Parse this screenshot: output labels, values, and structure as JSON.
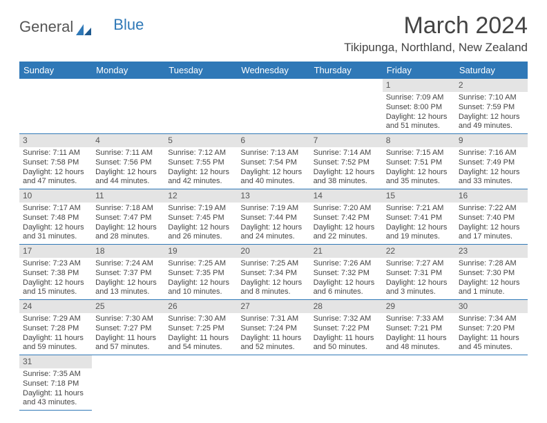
{
  "brand": {
    "part1": "General",
    "part2": "Blue"
  },
  "title": "March 2024",
  "location": "Tikipunga, Northland, New Zealand",
  "colors": {
    "header_bg": "#2f78b7",
    "daynum_bg": "#e4e4e4",
    "text": "#444444"
  },
  "weekdays": [
    "Sunday",
    "Monday",
    "Tuesday",
    "Wednesday",
    "Thursday",
    "Friday",
    "Saturday"
  ],
  "weeks": [
    [
      null,
      null,
      null,
      null,
      null,
      {
        "d": "1",
        "sr": "7:09 AM",
        "ss": "8:00 PM",
        "dl": "12 hours and 51 minutes."
      },
      {
        "d": "2",
        "sr": "7:10 AM",
        "ss": "7:59 PM",
        "dl": "12 hours and 49 minutes."
      }
    ],
    [
      {
        "d": "3",
        "sr": "7:11 AM",
        "ss": "7:58 PM",
        "dl": "12 hours and 47 minutes."
      },
      {
        "d": "4",
        "sr": "7:11 AM",
        "ss": "7:56 PM",
        "dl": "12 hours and 44 minutes."
      },
      {
        "d": "5",
        "sr": "7:12 AM",
        "ss": "7:55 PM",
        "dl": "12 hours and 42 minutes."
      },
      {
        "d": "6",
        "sr": "7:13 AM",
        "ss": "7:54 PM",
        "dl": "12 hours and 40 minutes."
      },
      {
        "d": "7",
        "sr": "7:14 AM",
        "ss": "7:52 PM",
        "dl": "12 hours and 38 minutes."
      },
      {
        "d": "8",
        "sr": "7:15 AM",
        "ss": "7:51 PM",
        "dl": "12 hours and 35 minutes."
      },
      {
        "d": "9",
        "sr": "7:16 AM",
        "ss": "7:49 PM",
        "dl": "12 hours and 33 minutes."
      }
    ],
    [
      {
        "d": "10",
        "sr": "7:17 AM",
        "ss": "7:48 PM",
        "dl": "12 hours and 31 minutes."
      },
      {
        "d": "11",
        "sr": "7:18 AM",
        "ss": "7:47 PM",
        "dl": "12 hours and 28 minutes."
      },
      {
        "d": "12",
        "sr": "7:19 AM",
        "ss": "7:45 PM",
        "dl": "12 hours and 26 minutes."
      },
      {
        "d": "13",
        "sr": "7:19 AM",
        "ss": "7:44 PM",
        "dl": "12 hours and 24 minutes."
      },
      {
        "d": "14",
        "sr": "7:20 AM",
        "ss": "7:42 PM",
        "dl": "12 hours and 22 minutes."
      },
      {
        "d": "15",
        "sr": "7:21 AM",
        "ss": "7:41 PM",
        "dl": "12 hours and 19 minutes."
      },
      {
        "d": "16",
        "sr": "7:22 AM",
        "ss": "7:40 PM",
        "dl": "12 hours and 17 minutes."
      }
    ],
    [
      {
        "d": "17",
        "sr": "7:23 AM",
        "ss": "7:38 PM",
        "dl": "12 hours and 15 minutes."
      },
      {
        "d": "18",
        "sr": "7:24 AM",
        "ss": "7:37 PM",
        "dl": "12 hours and 13 minutes."
      },
      {
        "d": "19",
        "sr": "7:25 AM",
        "ss": "7:35 PM",
        "dl": "12 hours and 10 minutes."
      },
      {
        "d": "20",
        "sr": "7:25 AM",
        "ss": "7:34 PM",
        "dl": "12 hours and 8 minutes."
      },
      {
        "d": "21",
        "sr": "7:26 AM",
        "ss": "7:32 PM",
        "dl": "12 hours and 6 minutes."
      },
      {
        "d": "22",
        "sr": "7:27 AM",
        "ss": "7:31 PM",
        "dl": "12 hours and 3 minutes."
      },
      {
        "d": "23",
        "sr": "7:28 AM",
        "ss": "7:30 PM",
        "dl": "12 hours and 1 minute."
      }
    ],
    [
      {
        "d": "24",
        "sr": "7:29 AM",
        "ss": "7:28 PM",
        "dl": "11 hours and 59 minutes."
      },
      {
        "d": "25",
        "sr": "7:30 AM",
        "ss": "7:27 PM",
        "dl": "11 hours and 57 minutes."
      },
      {
        "d": "26",
        "sr": "7:30 AM",
        "ss": "7:25 PM",
        "dl": "11 hours and 54 minutes."
      },
      {
        "d": "27",
        "sr": "7:31 AM",
        "ss": "7:24 PM",
        "dl": "11 hours and 52 minutes."
      },
      {
        "d": "28",
        "sr": "7:32 AM",
        "ss": "7:22 PM",
        "dl": "11 hours and 50 minutes."
      },
      {
        "d": "29",
        "sr": "7:33 AM",
        "ss": "7:21 PM",
        "dl": "11 hours and 48 minutes."
      },
      {
        "d": "30",
        "sr": "7:34 AM",
        "ss": "7:20 PM",
        "dl": "11 hours and 45 minutes."
      }
    ],
    [
      {
        "d": "31",
        "sr": "7:35 AM",
        "ss": "7:18 PM",
        "dl": "11 hours and 43 minutes."
      },
      null,
      null,
      null,
      null,
      null,
      null
    ]
  ],
  "labels": {
    "sunrise": "Sunrise:",
    "sunset": "Sunset:",
    "daylight": "Daylight:"
  }
}
